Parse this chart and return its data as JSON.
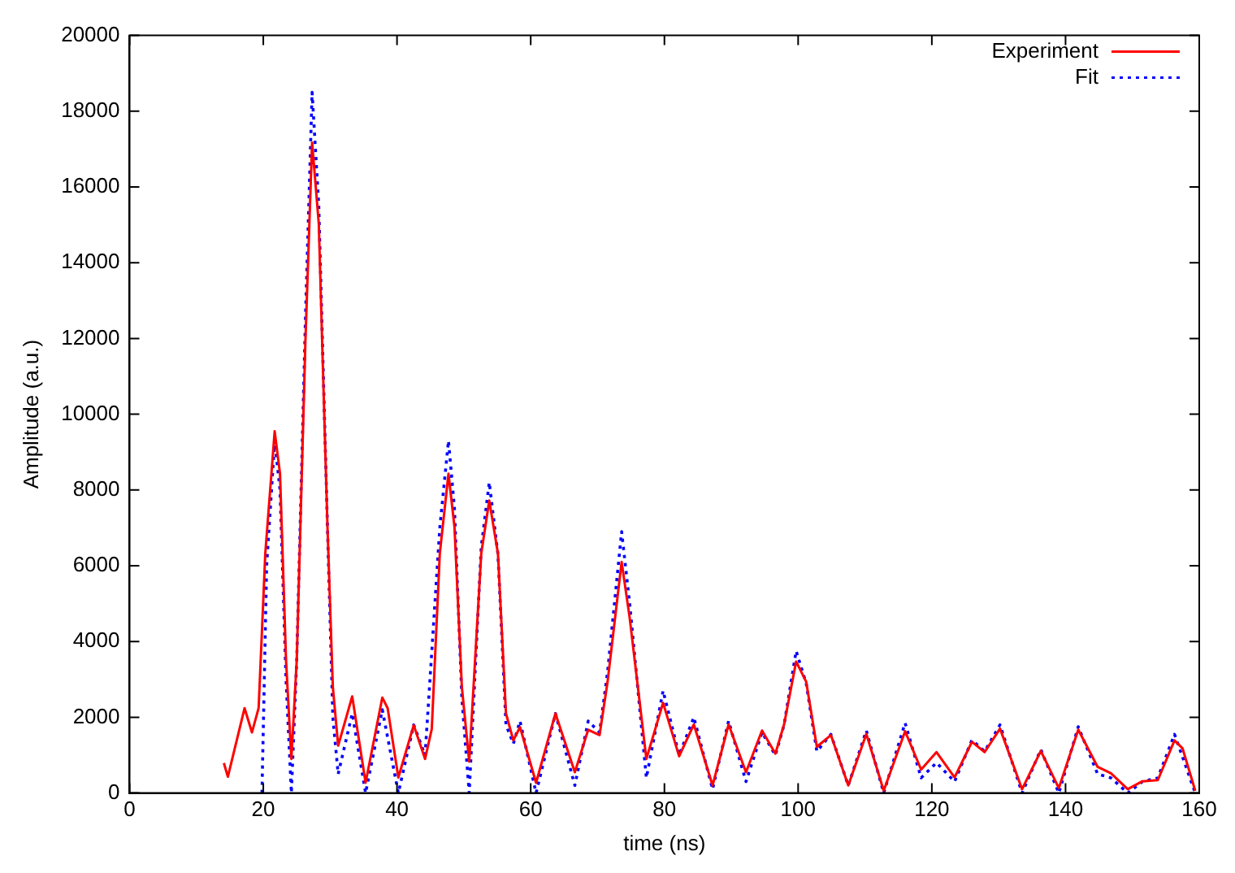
{
  "chart_data": {
    "type": "line",
    "xlabel": "time (ns)",
    "ylabel": "Amplitude (a.u.)",
    "xlim": [
      0,
      160
    ],
    "xticks": [
      0,
      20,
      40,
      60,
      80,
      100,
      120,
      140,
      160
    ],
    "ylim": [
      0,
      20000
    ],
    "yticks": [
      0,
      2000,
      4000,
      6000,
      8000,
      10000,
      12000,
      14000,
      16000,
      18000,
      20000
    ],
    "grid": false,
    "legend": "top right",
    "marker": "none",
    "series": [
      {
        "name": "Experiment",
        "color": "#ff0000",
        "line_style": "solid",
        "x": [
          14.1,
          14.7,
          17.2,
          18.3,
          19.3,
          20.3,
          21.7,
          22.5,
          23.4,
          24.2,
          25.0,
          26.3,
          27.3,
          28.3,
          29.6,
          30.4,
          31.2,
          33.3,
          35.3,
          37.8,
          38.6,
          40.2,
          42.5,
          44.2,
          45.2,
          46.4,
          47.7,
          48.6,
          49.7,
          50.8,
          52.6,
          53.8,
          55.1,
          56.3,
          57.4,
          58.4,
          60.8,
          63.7,
          66.6,
          68.6,
          70.3,
          71.5,
          73.6,
          74.8,
          77.3,
          79.8,
          82.2,
          84.4,
          87.2,
          89.6,
          92.2,
          94.6,
          96.6,
          97.9,
          99.7,
          101.2,
          102.8,
          104.9,
          107.5,
          110.2,
          112.8,
          116.0,
          118.4,
          120.7,
          123.4,
          126.0,
          127.9,
          130.2,
          133.5,
          136.3,
          139.0,
          141.9,
          144.8,
          146.8,
          149.3,
          151.5,
          153.8,
          156.3,
          157.5,
          159.4
        ],
        "values": [
          790,
          430,
          2240,
          1600,
          2240,
          6330,
          9550,
          8430,
          3500,
          900,
          3500,
          11940,
          17170,
          15030,
          7020,
          2800,
          1250,
          2550,
          270,
          2520,
          2240,
          410,
          1790,
          900,
          1690,
          6320,
          8430,
          7020,
          2800,
          830,
          6320,
          7720,
          6320,
          2100,
          1390,
          1740,
          270,
          2100,
          550,
          1670,
          1530,
          2940,
          6100,
          4630,
          900,
          2380,
          970,
          1810,
          200,
          1810,
          550,
          1650,
          1040,
          1810,
          3470,
          2940,
          1220,
          1530,
          200,
          1560,
          60,
          1630,
          620,
          1080,
          410,
          1350,
          1080,
          1700,
          100,
          1110,
          130,
          1670,
          690,
          520,
          100,
          310,
          340,
          1390,
          1180,
          60
        ]
      },
      {
        "name": "Fit",
        "color": "#0000ff",
        "line_style": "dotted",
        "x": [
          19.8,
          20.5,
          21.7,
          22.5,
          23.4,
          24.2,
          25.0,
          26.3,
          27.3,
          28.3,
          29.6,
          30.4,
          31.2,
          33.3,
          35.3,
          37.8,
          40.2,
          42.5,
          44.2,
          46.4,
          47.7,
          48.6,
          49.7,
          50.8,
          52.6,
          53.8,
          55.1,
          56.3,
          57.4,
          58.4,
          60.8,
          63.7,
          66.6,
          68.6,
          70.3,
          71.5,
          73.6,
          74.8,
          77.3,
          79.8,
          82.2,
          84.4,
          87.2,
          89.6,
          92.2,
          94.6,
          96.6,
          97.9,
          99.7,
          101.2,
          102.8,
          104.9,
          107.5,
          110.2,
          112.8,
          116.0,
          118.4,
          120.7,
          123.4,
          126.0,
          127.9,
          130.2,
          133.5,
          136.3,
          139.0,
          141.9,
          144.8,
          146.8,
          149.3,
          151.5,
          153.8,
          156.3,
          159.4
        ],
        "values": [
          0,
          6000,
          9300,
          8000,
          3000,
          0,
          3500,
          12500,
          18500,
          15500,
          7000,
          2000,
          500,
          2100,
          0,
          2200,
          0,
          1800,
          1000,
          7000,
          9300,
          7500,
          2500,
          0,
          6500,
          8200,
          6300,
          1800,
          1300,
          1900,
          0,
          2100,
          200,
          1900,
          1600,
          3200,
          6900,
          5000,
          400,
          2700,
          1000,
          2000,
          100,
          1900,
          300,
          1600,
          1000,
          1800,
          3750,
          2900,
          1100,
          1550,
          200,
          1650,
          0,
          1850,
          400,
          800,
          300,
          1400,
          1100,
          1800,
          0,
          1150,
          0,
          1750,
          500,
          400,
          0,
          300,
          400,
          1550,
          0
        ]
      }
    ]
  }
}
